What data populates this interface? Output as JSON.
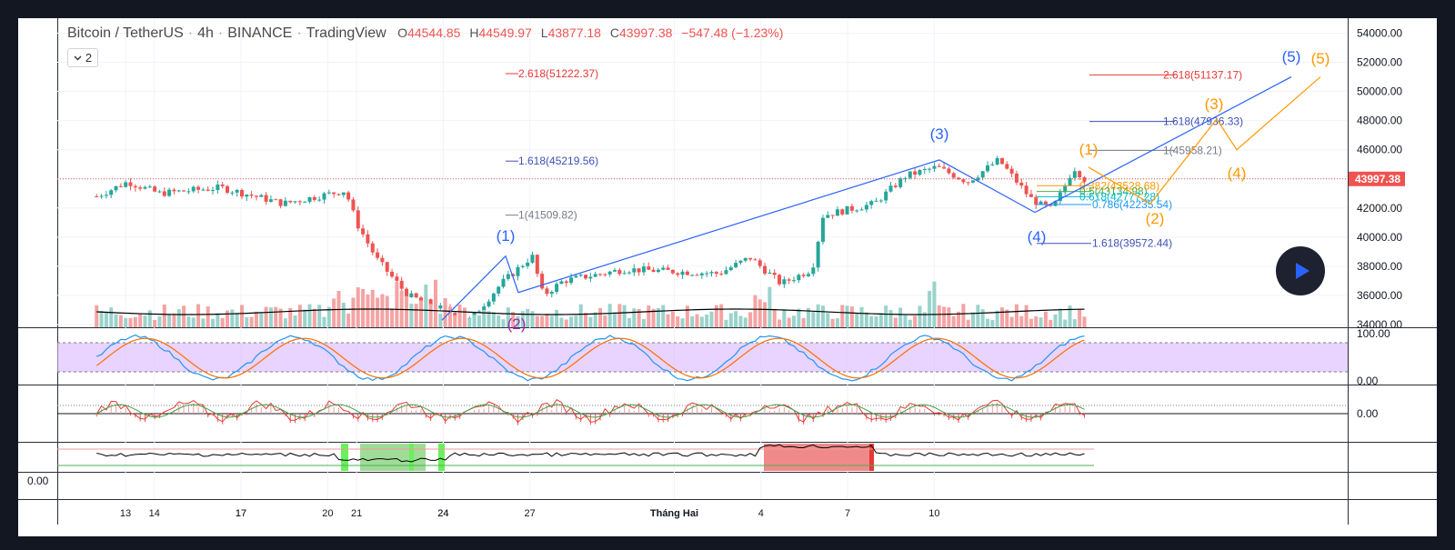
{
  "header": {
    "symbol": "Bitcoin / TetherUS",
    "interval": "4h",
    "exchange": "BINANCE",
    "source": "TradingView",
    "ohlc": [
      {
        "key": "O",
        "value": "44544.85"
      },
      {
        "key": "H",
        "value": "44549.97"
      },
      {
        "key": "L",
        "value": "43877.18"
      },
      {
        "key": "C",
        "value": "43997.38"
      }
    ],
    "change": "−547.48 (−1.23%)"
  },
  "legend_toggle": {
    "count": "2"
  },
  "colors": {
    "down": "#ef5350",
    "up": "#26a69a",
    "blue": "#2962ff",
    "orange": "#ff9800",
    "fib_red": "#e53935",
    "fib_blue": "#3f51b5",
    "fib_gray": "#787b86",
    "stoch_band": "#d9b8ff"
  },
  "icons": {
    "legend_toggle": "chevron-down-icon",
    "play": "play-icon"
  },
  "chart_data": {
    "type": "candlestick",
    "symbol": "Bitcoin / TetherUS",
    "interval": "4h",
    "price_axis": {
      "ylim": [
        34000,
        54000
      ],
      "ticks": [
        "54000.00",
        "52000.00",
        "50000.00",
        "48000.00",
        "46000.00",
        "44000.00",
        "42000.00",
        "40000.00",
        "38000.00",
        "36000.00",
        "34000.00"
      ],
      "last_price": "43997.38"
    },
    "time_axis": {
      "labels": [
        "13",
        "17",
        "20",
        "24",
        "27",
        "Tháng Hai",
        "4",
        "7",
        "10",
        "14",
        "17",
        "21",
        "24"
      ]
    },
    "price_path_keypoints": [
      {
        "x": "12",
        "y": 42800
      },
      {
        "x": "13",
        "y": 43800
      },
      {
        "x": "14",
        "y": 43000
      },
      {
        "x": "16",
        "y": 43400
      },
      {
        "x": "18",
        "y": 42300
      },
      {
        "x": "20",
        "y": 43200
      },
      {
        "x": "20",
        "y": 41000
      },
      {
        "x": "21",
        "y": 38500
      },
      {
        "x": "22",
        "y": 36000
      },
      {
        "x": "24",
        "y": 34300
      },
      {
        "x": "25",
        "y": 36800
      },
      {
        "x": "26",
        "y": 38700
      },
      {
        "x": "26",
        "y": 36000
      },
      {
        "x": "27",
        "y": 37000
      },
      {
        "x": "29",
        "y": 37800
      },
      {
        "x": "Tháng Hai",
        "y": 37500
      },
      {
        "x": "2",
        "y": 38600
      },
      {
        "x": "3",
        "y": 36800
      },
      {
        "x": "4",
        "y": 37800
      },
      {
        "x": "4",
        "y": 41500
      },
      {
        "x": "6",
        "y": 42300
      },
      {
        "x": "7",
        "y": 44200
      },
      {
        "x": "8",
        "y": 44800
      },
      {
        "x": "9",
        "y": 43800
      },
      {
        "x": "10",
        "y": 45300
      },
      {
        "x": "11",
        "y": 42700
      },
      {
        "x": "12",
        "y": 42200
      },
      {
        "x": "13",
        "y": 41900
      },
      {
        "x": "14",
        "y": 43200
      },
      {
        "x": "15",
        "y": 44800
      },
      {
        "x": "15",
        "y": 43997.38
      }
    ],
    "fib_levels": [
      {
        "label": "2.618(51222.37)",
        "price": 51222.37,
        "color": "#e53935"
      },
      {
        "label": "1.618(45219.56)",
        "price": 45219.56,
        "color": "#3f51b5"
      },
      {
        "label": "1(41509.82)",
        "price": 41509.82,
        "color": "#787b86"
      },
      {
        "label": "2.618(51137.17)",
        "price": 51137.17,
        "color": "#e53935"
      },
      {
        "label": "1.618(47936.33)",
        "price": 47936.33,
        "color": "#3f51b5"
      },
      {
        "label": "1(45958.21)",
        "price": 45958.21,
        "color": "#787b86"
      },
      {
        "label": "0.382(43528.68)",
        "price": 43528.68,
        "color": "#ff9800"
      },
      {
        "label": "0.5(43134.98)",
        "price": 43134.98,
        "color": "#4caf50"
      },
      {
        "label": "0.618(42777.28)",
        "price": 42777.28,
        "color": "#00bcd4"
      },
      {
        "label": "0.786(42235.54)",
        "price": 42235.54,
        "color": "#2196f3"
      },
      {
        "label": "1.618(39572.44)",
        "price": 39572.44,
        "color": "#3f51b5"
      }
    ],
    "wave_labels": [
      {
        "text": "(1)",
        "color": "#2962ff"
      },
      {
        "text": "(2)",
        "color": "#9c27b0"
      },
      {
        "text": "(3)",
        "color": "#2962ff"
      },
      {
        "text": "(4)",
        "color": "#2962ff"
      },
      {
        "text": "(5)",
        "color": "#2962ff"
      },
      {
        "text": "(1)",
        "color": "#ff9800"
      },
      {
        "text": "(2)",
        "color": "#ff9800"
      },
      {
        "text": "(3)",
        "color": "#ff9800"
      },
      {
        "text": "(4)",
        "color": "#ff9800"
      },
      {
        "text": "(5)",
        "color": "#ff9800"
      }
    ],
    "stoch_axis": [
      "100.00",
      "0.00"
    ],
    "macd_axis": [
      "0.00"
    ],
    "pane4_axis": [
      "0.00"
    ]
  }
}
